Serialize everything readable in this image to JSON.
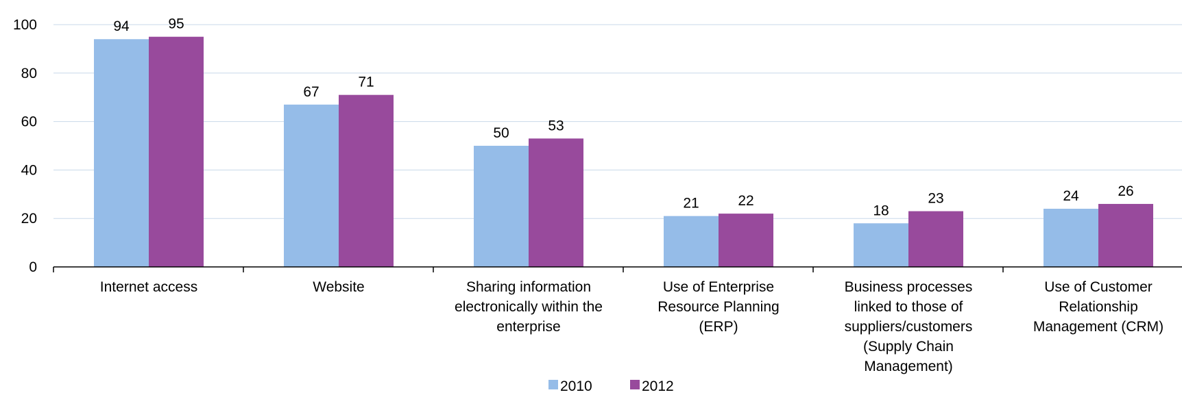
{
  "chart_data": {
    "type": "bar",
    "title": "",
    "xlabel": "",
    "ylabel": "",
    "ylim": [
      0,
      100
    ],
    "yticks": [
      0,
      20,
      40,
      60,
      80,
      100
    ],
    "grid": true,
    "legend_position": "bottom",
    "categories": [
      [
        "Internet access"
      ],
      [
        "Website"
      ],
      [
        "Sharing information",
        "electronically within the",
        "enterprise"
      ],
      [
        "Use of Enterprise",
        "Resource Planning",
        "(ERP)"
      ],
      [
        "Business processes",
        "linked to those of",
        "suppliers/customers",
        "(Supply Chain",
        "Management)"
      ],
      [
        "Use of Customer",
        "Relationship",
        "Management (CRM)"
      ]
    ],
    "series": [
      {
        "name": "2010",
        "color": "#95bce8",
        "values": [
          94,
          67,
          50,
          21,
          18,
          24
        ]
      },
      {
        "name": "2012",
        "color": "#984a9c",
        "values": [
          95,
          71,
          53,
          22,
          23,
          26
        ]
      }
    ]
  }
}
